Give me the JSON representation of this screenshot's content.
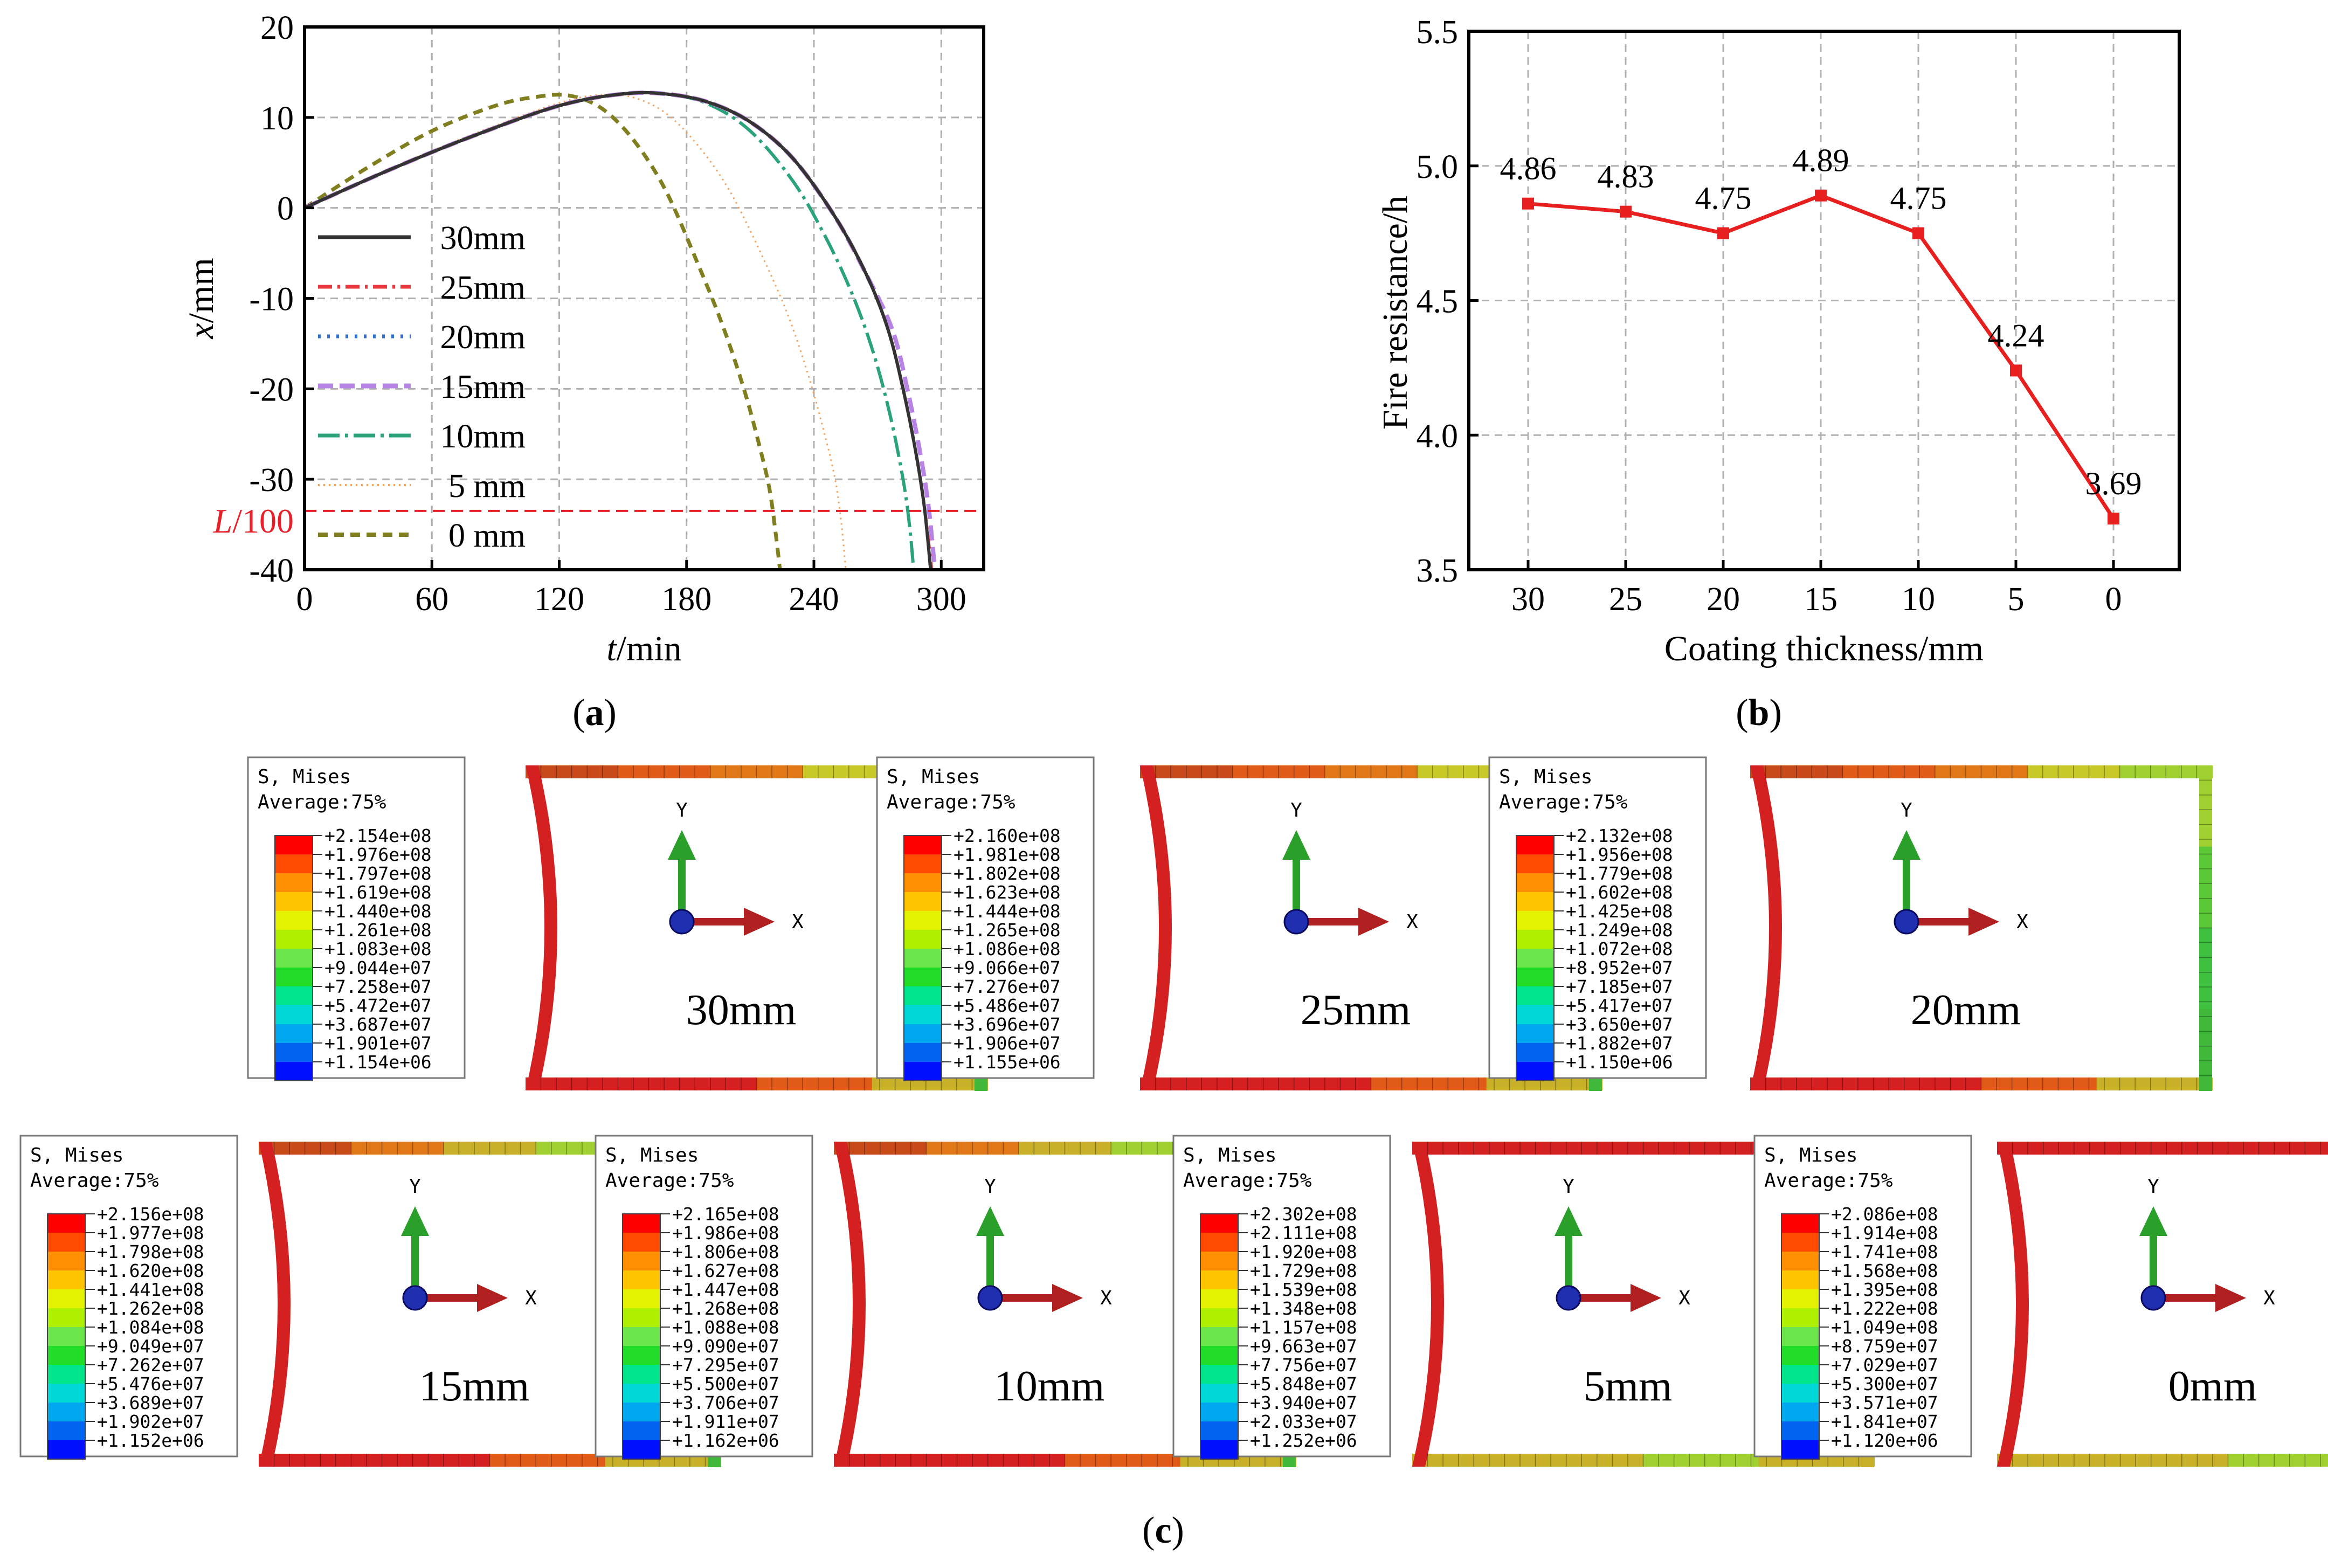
{
  "colors": {
    "s30": "#333333",
    "s25": "#e8383d",
    "s20": "#2f6fd6",
    "s15": "#b784e6",
    "s10": "#2aa37a",
    "s5": "#f4a460",
    "s0": "#7f7f1f",
    "ref": "#e8202a",
    "b_line": "#e81f1f",
    "grid": "#b0b0b0"
  },
  "chart_data": [
    {
      "id": "a",
      "type": "line",
      "caption": "a",
      "xlabel": "t",
      "xlabel_unit": "/min",
      "ylabel": "x",
      "ylabel_unit": "/mm",
      "xlim": [
        0,
        320
      ],
      "ylim": [
        -40,
        20
      ],
      "xticks": [
        0,
        60,
        120,
        180,
        240,
        300
      ],
      "yticks": [
        20,
        10,
        0,
        -10,
        -20,
        -30,
        -40
      ],
      "ytick_labels": [
        "20",
        "10",
        "0",
        "-10",
        "-20",
        "-30",
        "-40"
      ],
      "reference_line": {
        "label": "L",
        "label_suffix": "/100",
        "y": -33.5
      },
      "legend_position": "left-inside",
      "series": [
        {
          "name": "30mm",
          "key": "s30",
          "dash": "solid",
          "x": [
            0,
            40,
            80,
            120,
            150,
            170,
            190,
            210,
            230,
            250,
            265,
            275,
            282,
            288,
            292,
            295
          ],
          "y": [
            0,
            4.2,
            8,
            11.3,
            12.6,
            12.6,
            11.7,
            9.5,
            5.5,
            -1,
            -7.5,
            -13.5,
            -20,
            -27,
            -33,
            -40
          ]
        },
        {
          "name": "25mm",
          "key": "s25",
          "dash": "dashdot",
          "x": [
            0,
            40,
            80,
            120,
            150,
            170,
            190,
            210,
            230,
            250,
            265,
            275,
            282,
            288,
            292,
            295.5
          ],
          "y": [
            0,
            4.2,
            8,
            11.3,
            12.6,
            12.6,
            11.7,
            9.5,
            5.5,
            -1,
            -7.5,
            -13.5,
            -20,
            -27,
            -33,
            -40
          ]
        },
        {
          "name": "20mm",
          "key": "s20",
          "dash": "dot",
          "x": [
            0,
            40,
            80,
            120,
            150,
            170,
            190,
            210,
            230,
            250,
            265,
            275,
            282,
            288,
            292,
            295
          ],
          "y": [
            0,
            4.2,
            8,
            11.3,
            12.6,
            12.6,
            11.7,
            9.5,
            5.5,
            -1,
            -7.5,
            -13.5,
            -20,
            -27,
            -33,
            -40
          ]
        },
        {
          "name": "15mm",
          "key": "s15",
          "dash": "dash",
          "x": [
            0,
            40,
            80,
            120,
            150,
            170,
            190,
            210,
            230,
            250,
            265,
            277,
            284,
            290,
            294,
            297
          ],
          "y": [
            0,
            4.2,
            8,
            11.3,
            12.6,
            12.6,
            11.7,
            9.5,
            5.5,
            -1,
            -7.5,
            -13.5,
            -20,
            -27,
            -33,
            -40
          ]
        },
        {
          "name": "10mm",
          "key": "s10",
          "dash": "longdashdot",
          "x": [
            0,
            40,
            80,
            120,
            150,
            170,
            190,
            210,
            230,
            245,
            258,
            268,
            276,
            282,
            285,
            287
          ],
          "y": [
            0,
            4.2,
            8,
            11.3,
            12.6,
            12.6,
            11.5,
            8.5,
            3,
            -3,
            -9.5,
            -16,
            -23,
            -30,
            -35,
            -40
          ]
        },
        {
          "name": "5 mm",
          "key": "s5",
          "dash": "finedot",
          "x": [
            0,
            40,
            80,
            120,
            140,
            155,
            170,
            185,
            200,
            215,
            228,
            238,
            245,
            250,
            253,
            255
          ],
          "y": [
            0,
            4.3,
            8.2,
            11.6,
            12.5,
            12.2,
            10.5,
            7,
            2,
            -5,
            -12,
            -19,
            -25,
            -30,
            -35,
            -40
          ]
        },
        {
          "name": "0 mm",
          "key": "s0",
          "dash": "shortdash",
          "x": [
            0,
            30,
            60,
            90,
            110,
            125,
            140,
            155,
            170,
            185,
            197,
            207,
            214,
            219,
            222,
            224
          ],
          "y": [
            0,
            4.5,
            8.5,
            11.3,
            12.3,
            12.4,
            11,
            7.5,
            2,
            -6,
            -13,
            -20,
            -26,
            -31,
            -36,
            -40
          ]
        }
      ]
    },
    {
      "id": "b",
      "type": "line",
      "caption": "b",
      "xlabel": "Coating thickness/mm",
      "ylabel": "Fire resistance/h",
      "categories": [
        "30",
        "25",
        "20",
        "15",
        "10",
        "5",
        "0"
      ],
      "values": [
        4.86,
        4.83,
        4.75,
        4.89,
        4.75,
        4.24,
        3.69
      ],
      "data_labels": [
        "4.86",
        "4.83",
        "4.75",
        "4.89",
        "4.75",
        "4.24",
        "3.69"
      ],
      "ylim": [
        3.5,
        5.5
      ],
      "yticks": [
        3.5,
        4.0,
        4.5,
        5.0,
        5.5
      ],
      "ytick_labels": [
        "3.5",
        "4.0",
        "4.5",
        "5.0",
        "5.5"
      ]
    }
  ],
  "panel_c": {
    "caption": "c",
    "legend_title": "S, Mises",
    "legend_subtitle": "Average:75%",
    "axis_y": "Y",
    "axis_x": "X",
    "band_colors": [
      "#ff0000",
      "#ff4a00",
      "#ff8f00",
      "#ffc400",
      "#e3f200",
      "#aef000",
      "#6ae64a",
      "#22dc2a",
      "#00e58c",
      "#00d8d8",
      "#00a8f0",
      "#0064f0",
      "#0010ff"
    ],
    "panels": [
      {
        "label": "30mm",
        "values": [
          "+2.154e+08",
          "+1.976e+08",
          "+1.797e+08",
          "+1.619e+08",
          "+1.440e+08",
          "+1.261e+08",
          "+1.083e+08",
          "+9.044e+07",
          "+7.258e+07",
          "+5.472e+07",
          "+3.687e+07",
          "+1.901e+07",
          "+1.154e+06"
        ],
        "left": "#d42020",
        "top": [
          "#c84a1a",
          "#e05a18",
          "#e07818",
          "#c8c828",
          "#a0d030"
        ],
        "right": [
          "#a0d030",
          "#5cc838",
          "#40c040",
          "#40b83a"
        ],
        "bottom": [
          "#d42020",
          "#d42020",
          "#e05a18",
          "#c8b028"
        ]
      },
      {
        "label": "25mm",
        "values": [
          "+2.160e+08",
          "+1.981e+08",
          "+1.802e+08",
          "+1.623e+08",
          "+1.444e+08",
          "+1.265e+08",
          "+1.086e+08",
          "+9.066e+07",
          "+7.276e+07",
          "+5.486e+07",
          "+3.696e+07",
          "+1.906e+07",
          "+1.155e+06"
        ],
        "left": "#d42020",
        "top": [
          "#c84a1a",
          "#e05a18",
          "#e07818",
          "#c8c828",
          "#a0d030"
        ],
        "right": [
          "#a0d030",
          "#5cc838",
          "#40c040",
          "#40b83a"
        ],
        "bottom": [
          "#d42020",
          "#d42020",
          "#e05a18",
          "#c8b028"
        ]
      },
      {
        "label": "20mm",
        "values": [
          "+2.132e+08",
          "+1.956e+08",
          "+1.779e+08",
          "+1.602e+08",
          "+1.425e+08",
          "+1.249e+08",
          "+1.072e+08",
          "+8.952e+07",
          "+7.185e+07",
          "+5.417e+07",
          "+3.650e+07",
          "+1.882e+07",
          "+1.150e+06"
        ],
        "left": "#d42020",
        "top": [
          "#c84a1a",
          "#e05a18",
          "#e07818",
          "#c8c828",
          "#a0d030"
        ],
        "right": [
          "#a0d030",
          "#5cc838",
          "#40c040",
          "#40b83a"
        ],
        "bottom": [
          "#d42020",
          "#d42020",
          "#e05a18",
          "#c8b028"
        ]
      },
      {
        "label": "15mm",
        "values": [
          "+2.156e+08",
          "+1.977e+08",
          "+1.798e+08",
          "+1.620e+08",
          "+1.441e+08",
          "+1.262e+08",
          "+1.084e+08",
          "+9.049e+07",
          "+7.262e+07",
          "+5.476e+07",
          "+3.689e+07",
          "+1.902e+07",
          "+1.152e+06"
        ],
        "left": "#d42020",
        "top": [
          "#c84a1a",
          "#e07818",
          "#c8b028",
          "#a0d030",
          "#80d030"
        ],
        "right": [
          "#a0d030",
          "#5cc838",
          "#40c040",
          "#40b83a"
        ],
        "bottom": [
          "#d42020",
          "#d42020",
          "#e05a18",
          "#c8b028"
        ]
      },
      {
        "label": "10mm",
        "values": [
          "+2.165e+08",
          "+1.986e+08",
          "+1.806e+08",
          "+1.627e+08",
          "+1.447e+08",
          "+1.268e+08",
          "+1.088e+08",
          "+9.090e+07",
          "+7.295e+07",
          "+5.500e+07",
          "+3.706e+07",
          "+1.911e+07",
          "+1.162e+06"
        ],
        "left": "#d42020",
        "top": [
          "#c84a1a",
          "#e07818",
          "#c8b028",
          "#a0d030",
          "#80d030"
        ],
        "right": [
          "#a0d030",
          "#5cc838",
          "#40c040",
          "#40b83a"
        ],
        "bottom": [
          "#d42020",
          "#d42020",
          "#e05a18",
          "#c8b028"
        ]
      },
      {
        "label": "5mm",
        "values": [
          "+2.302e+08",
          "+2.111e+08",
          "+1.920e+08",
          "+1.729e+08",
          "+1.539e+08",
          "+1.348e+08",
          "+1.157e+08",
          "+9.663e+07",
          "+7.756e+07",
          "+5.848e+07",
          "+3.940e+07",
          "+2.033e+07",
          "+1.252e+06"
        ],
        "left": "#d42020",
        "top": [
          "#d42020",
          "#d42020",
          "#d42020",
          "#d42020",
          "#e05a18"
        ],
        "right": [
          "#e05a18",
          "#d42020",
          "#e07818",
          "#c8b028"
        ],
        "bottom": [
          "#c8b028",
          "#c8b028",
          "#a0d030",
          "#c8b028"
        ]
      },
      {
        "label": "0mm",
        "values": [
          "+2.086e+08",
          "+1.914e+08",
          "+1.741e+08",
          "+1.568e+08",
          "+1.395e+08",
          "+1.222e+08",
          "+1.049e+08",
          "+8.759e+07",
          "+7.029e+07",
          "+5.300e+07",
          "+3.571e+07",
          "+1.841e+07",
          "+1.120e+06"
        ],
        "left": "#d42020",
        "top": [
          "#d42020",
          "#d42020",
          "#d42020",
          "#d42020",
          "#e05a18"
        ],
        "right": [
          "#40c040",
          "#00c8a0",
          "#20c0c0",
          "#40c040"
        ],
        "bottom": [
          "#c8b028",
          "#c8b028",
          "#a0d030",
          "#a0d030"
        ]
      }
    ]
  }
}
